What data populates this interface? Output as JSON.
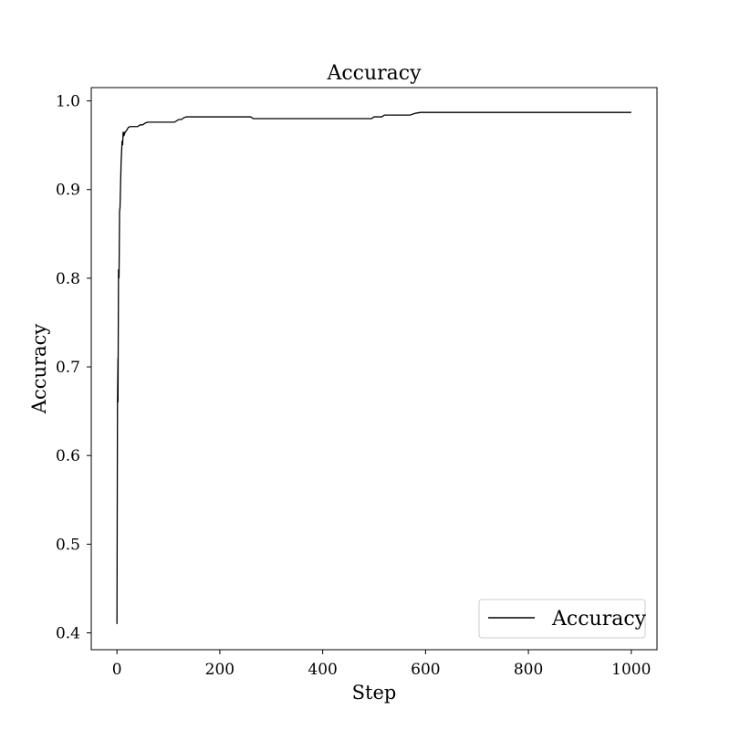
{
  "chart_data": {
    "type": "line",
    "title": "Accuracy",
    "xlabel": "Step",
    "ylabel": "Accuracy",
    "xlim": [
      -50,
      1050
    ],
    "ylim": [
      0.381,
      1.015
    ],
    "xticks": [
      0,
      200,
      400,
      600,
      800,
      1000
    ],
    "xtick_labels": [
      "0",
      "200",
      "400",
      "600",
      "800",
      "1000"
    ],
    "yticks": [
      0.4,
      0.5,
      0.6,
      0.7,
      0.8,
      0.9,
      1.0
    ],
    "ytick_labels": [
      "0.4",
      "0.5",
      "0.6",
      "0.7",
      "0.8",
      "0.9",
      "1.0"
    ],
    "grid": false,
    "legend": {
      "position": "lower-right",
      "entries": [
        "Accuracy"
      ]
    },
    "series": [
      {
        "name": "Accuracy",
        "color": "#000000",
        "x": [
          0,
          1,
          2,
          2,
          3,
          4,
          5,
          5,
          6,
          8,
          10,
          11,
          12,
          13,
          14,
          15,
          16,
          18,
          20,
          22,
          25,
          30,
          40,
          45,
          50,
          55,
          60,
          70,
          100,
          112,
          120,
          125,
          130,
          135,
          150,
          200,
          260,
          265,
          300,
          400,
          495,
          500,
          515,
          520,
          570,
          580,
          590,
          600,
          800,
          1000
        ],
        "y": [
          0.41,
          0.66,
          0.71,
          0.66,
          0.81,
          0.8,
          0.87,
          0.875,
          0.88,
          0.93,
          0.955,
          0.95,
          0.965,
          0.96,
          0.965,
          0.963,
          0.965,
          0.966,
          0.968,
          0.97,
          0.971,
          0.971,
          0.971,
          0.973,
          0.973,
          0.975,
          0.976,
          0.976,
          0.976,
          0.976,
          0.979,
          0.979,
          0.981,
          0.982,
          0.982,
          0.982,
          0.982,
          0.98,
          0.98,
          0.98,
          0.98,
          0.982,
          0.982,
          0.984,
          0.984,
          0.986,
          0.987,
          0.987,
          0.987,
          0.987
        ]
      }
    ]
  }
}
